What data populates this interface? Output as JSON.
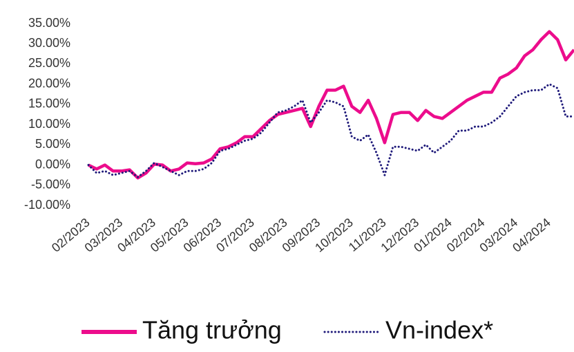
{
  "chart_data": {
    "type": "line",
    "categories": [
      "02/2023",
      null,
      null,
      null,
      "03/2023",
      null,
      null,
      null,
      "04/2023",
      null,
      null,
      null,
      "05/2023",
      null,
      null,
      null,
      "06/2023",
      null,
      null,
      null,
      "07/2023",
      null,
      null,
      null,
      "08/2023",
      null,
      null,
      null,
      "09/2023",
      null,
      null,
      null,
      "10/2023",
      null,
      null,
      null,
      "11/2023",
      null,
      null,
      null,
      "12/2023",
      null,
      null,
      null,
      "01/2024",
      null,
      null,
      null,
      "02/2024",
      null,
      null,
      null,
      "03/2024",
      null,
      null,
      null,
      "04/2024",
      null,
      null,
      null
    ],
    "series": [
      {
        "name": "Tăng trưởng",
        "color": "#ec0c8c",
        "style": "solid",
        "values": [
          0,
          -1,
          0,
          -1.5,
          -1.5,
          -1.2,
          -3.2,
          -2,
          0.2,
          0,
          -1.5,
          -1,
          0.5,
          0.3,
          0.5,
          1.5,
          4,
          4.5,
          5.5,
          7,
          7,
          9,
          11,
          12.5,
          13,
          13.5,
          14,
          9.5,
          14.5,
          18.5,
          18.5,
          19.5,
          14.5,
          13,
          16,
          11.5,
          5.5,
          12.5,
          13,
          13,
          11,
          13.5,
          12,
          11.5,
          13,
          14.5,
          16,
          17,
          18,
          18,
          21.5,
          22.5,
          24,
          27,
          28.5,
          31,
          33,
          31,
          26,
          28.5
        ]
      },
      {
        "name": "Vn-index*",
        "color": "#1f1a7a",
        "style": "dotted",
        "values": [
          0,
          -2,
          -1.5,
          -2.5,
          -2,
          -1.5,
          -3,
          -1.5,
          0.5,
          -0.5,
          -1.5,
          -2.5,
          -1.5,
          -1.5,
          -1,
          0.5,
          3.5,
          4,
          5,
          6,
          6.5,
          8,
          10.5,
          13,
          13.5,
          14.5,
          16,
          10.5,
          13,
          16,
          15.5,
          14.5,
          7,
          6,
          7.5,
          3,
          -2.5,
          4.5,
          4.5,
          4,
          3.5,
          5,
          3,
          4.5,
          6,
          8.5,
          8.5,
          9.5,
          9.5,
          10.5,
          12,
          14.5,
          17,
          18,
          18.5,
          18.5,
          20,
          19,
          12,
          12
        ]
      }
    ],
    "ylim": [
      -10,
      35
    ],
    "yticks": [
      {
        "value": -10,
        "label": "-10.00%"
      },
      {
        "value": -5,
        "label": "-5.00%"
      },
      {
        "value": 0,
        "label": "0.00%"
      },
      {
        "value": 5,
        "label": "5.00%"
      },
      {
        "value": 10,
        "label": "10.00%"
      },
      {
        "value": 15,
        "label": "15.00%"
      },
      {
        "value": 20,
        "label": "20.00%"
      },
      {
        "value": 25,
        "label": "25.00%"
      },
      {
        "value": 30,
        "label": "30.00%"
      },
      {
        "value": 35,
        "label": "35.00%"
      }
    ],
    "grid": false,
    "legend": "bottom"
  }
}
